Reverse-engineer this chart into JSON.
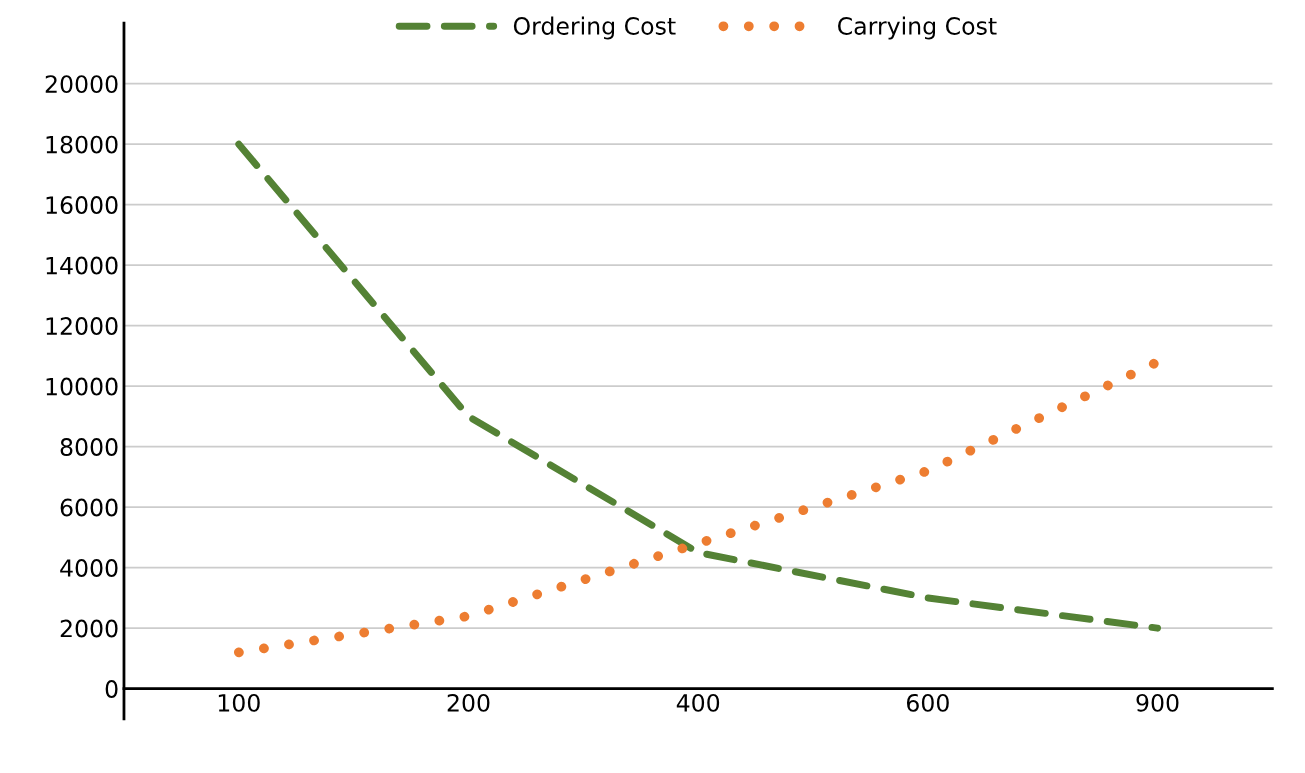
{
  "chart_data": {
    "type": "line",
    "categories": [
      "100",
      "200",
      "400",
      "600",
      "900"
    ],
    "series": [
      {
        "name": "Ordering Cost",
        "color": "#548235",
        "values": [
          18000,
          9000,
          4500,
          3000,
          2000
        ],
        "line_style": "dashed"
      },
      {
        "name": "Carrying Cost",
        "color": "#ed7d31",
        "values": [
          1200,
          2400,
          4800,
          7200,
          10800
        ],
        "line_style": "dotted"
      }
    ],
    "ylim": [
      -1000,
      22000
    ],
    "yticks": [
      0,
      2000,
      4000,
      6000,
      8000,
      10000,
      12000,
      14000,
      16000,
      18000,
      20000
    ],
    "grid": "y",
    "legend": "top",
    "marker": "none"
  }
}
